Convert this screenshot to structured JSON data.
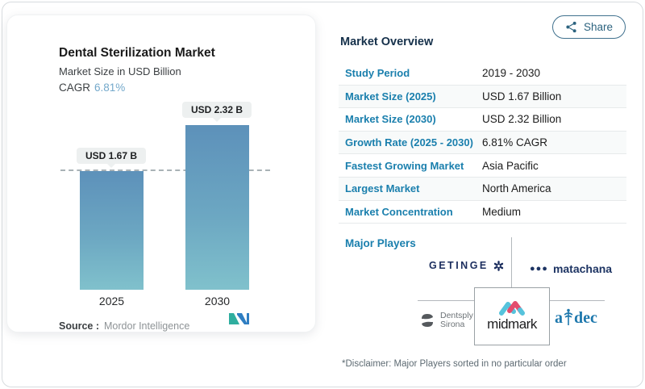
{
  "chart_data": {
    "type": "bar",
    "title": "Dental Sterilization Market",
    "subtitle": "Market Size in USD Billion",
    "categories": [
      "2025",
      "2030"
    ],
    "values": [
      1.67,
      2.32
    ],
    "bar_labels": [
      "USD 1.67 B",
      "USD 2.32 B"
    ],
    "cagr": "6.81%",
    "reference_line_value": 1.67,
    "xlabel": "",
    "ylabel": "Market Size in USD Billion",
    "legend": "none",
    "grid": "off",
    "bar_gradient": [
      "#5d91ba",
      "#80c1cc"
    ]
  },
  "card": {
    "title": "Dental Sterilization Market",
    "subtitle": "Market Size in USD Billion",
    "cagr_label": "CAGR",
    "cagr_value": "6.81%",
    "source_label": "Source :",
    "source_value": "Mordor Intelligence"
  },
  "share": {
    "label": "Share"
  },
  "overview": {
    "heading": "Market Overview",
    "rows": [
      {
        "label": "Study Period",
        "value": "2019 - 2030"
      },
      {
        "label": "Market Size (2025)",
        "value": "USD 1.67 Billion"
      },
      {
        "label": "Market Size (2030)",
        "value": "USD 2.32 Billion"
      },
      {
        "label": "Growth Rate (2025 - 2030)",
        "value": "6.81% CAGR"
      },
      {
        "label": "Fastest Growing Market",
        "value": "Asia Pacific"
      },
      {
        "label": "Largest Market",
        "value": "North America"
      },
      {
        "label": "Market Concentration",
        "value": "Medium"
      }
    ],
    "major_players_label": "Major Players",
    "players": {
      "getinge": "GETINGE",
      "matachana": "matachana",
      "dentsply_line1": "Dentsply",
      "dentsply_line2": "Sirona",
      "midmark": "midmark",
      "adec_a": "a",
      "adec_dec": "dec"
    },
    "player_names": [
      "Getinge",
      "Matachana",
      "Dentsply Sirona",
      "Midmark",
      "A-dec"
    ],
    "disclaimer": "*Disclaimer: Major Players sorted in no particular order"
  },
  "colors": {
    "accent_blue": "#1a7fad",
    "heading_navy": "#16314b",
    "cagr_blue": "#74a9cb",
    "bar_top": "#5d91ba",
    "bar_bottom": "#80c1cc",
    "getinge_navy": "#1c2e5e",
    "matachana_navy": "#1d3463",
    "adec_blue": "#1e78ad",
    "midmark_blue": "#56c3dc",
    "midmark_pink": "#e34d6e",
    "mordor_teal": "#2fae9f",
    "mordor_blue": "#2f7ec2"
  }
}
